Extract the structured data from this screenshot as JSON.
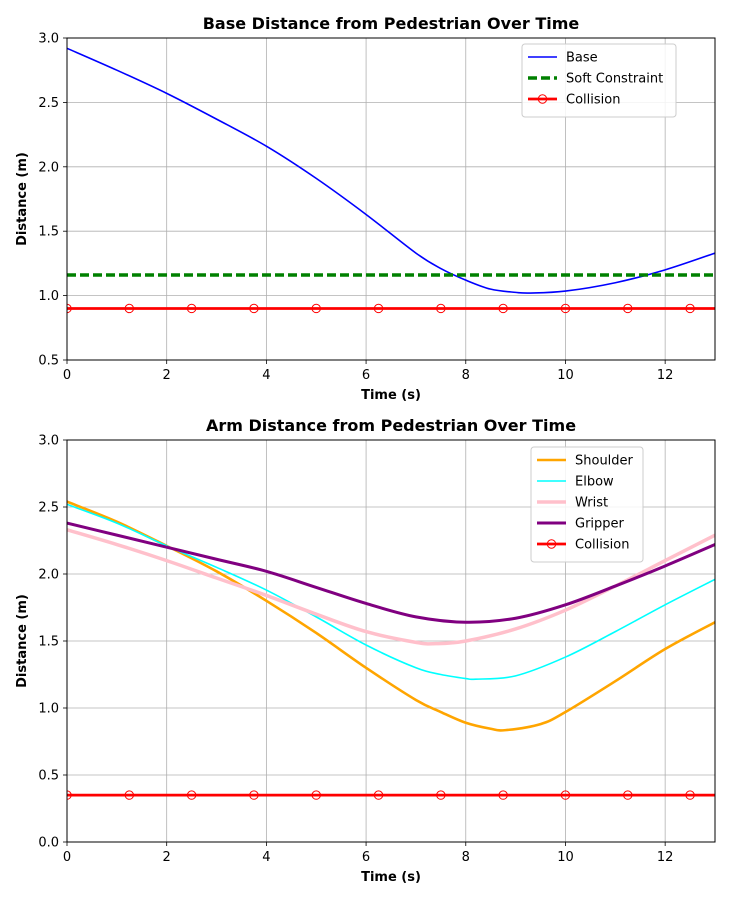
{
  "chart_data": [
    {
      "type": "line",
      "title": "Base Distance from Pedestrian Over Time",
      "xlabel": "Time (s)",
      "ylabel": "Distance (m)",
      "xlim": [
        0,
        13
      ],
      "ylim": [
        0.5,
        3.0
      ],
      "xticks": [
        0,
        2,
        4,
        6,
        8,
        10,
        12
      ],
      "yticks": [
        0.5,
        1.0,
        1.5,
        2.0,
        2.5,
        3.0
      ],
      "xtick_labels": [
        "0",
        "2",
        "4",
        "6",
        "8",
        "10",
        "12"
      ],
      "ytick_labels": [
        "0.5",
        "1.0",
        "1.5",
        "2.0",
        "2.5",
        "3.0"
      ],
      "grid": true,
      "legend_position": "upper right",
      "series": [
        {
          "name": "Base",
          "color": "#0000ff",
          "style": "solid",
          "x": [
            0,
            1,
            2,
            3,
            4,
            5,
            6,
            7,
            7.5,
            8,
            8.5,
            9,
            9.3,
            10,
            11,
            12,
            13
          ],
          "y": [
            2.92,
            2.75,
            2.57,
            2.37,
            2.16,
            1.91,
            1.63,
            1.33,
            1.21,
            1.12,
            1.05,
            1.025,
            1.02,
            1.035,
            1.1,
            1.2,
            1.33
          ]
        },
        {
          "name": "Soft Constraint",
          "color": "#008000",
          "style": "dashed",
          "x": [
            0,
            13
          ],
          "y": [
            1.16,
            1.16
          ]
        },
        {
          "name": "Collision",
          "color": "#ff0000",
          "style": "solid-markers",
          "x": [
            0,
            13
          ],
          "y": [
            0.9,
            0.9
          ],
          "marker_x": [
            0,
            1.25,
            2.5,
            3.75,
            5,
            6.25,
            7.5,
            8.75,
            10,
            11.25,
            12.5
          ]
        }
      ]
    },
    {
      "type": "line",
      "title": "Arm Distance from Pedestrian Over Time",
      "xlabel": "Time (s)",
      "ylabel": "Distance (m)",
      "xlim": [
        0,
        13
      ],
      "ylim": [
        0.0,
        3.0
      ],
      "xticks": [
        0,
        2,
        4,
        6,
        8,
        10,
        12
      ],
      "yticks": [
        0.0,
        0.5,
        1.0,
        1.5,
        2.0,
        2.5,
        3.0
      ],
      "xtick_labels": [
        "0",
        "2",
        "4",
        "6",
        "8",
        "10",
        "12"
      ],
      "ytick_labels": [
        "0.0",
        "0.5",
        "1.0",
        "1.5",
        "2.0",
        "2.5",
        "3.0"
      ],
      "grid": true,
      "legend_position": "upper right",
      "series": [
        {
          "name": "Shoulder",
          "color": "#ffa500",
          "style": "solid",
          "x": [
            0,
            1,
            2,
            3,
            4,
            5,
            6,
            7,
            7.5,
            8,
            8.5,
            8.8,
            9.5,
            10,
            11,
            12,
            13
          ],
          "y": [
            2.54,
            2.39,
            2.21,
            2.02,
            1.8,
            1.56,
            1.3,
            1.06,
            0.97,
            0.89,
            0.845,
            0.835,
            0.88,
            0.97,
            1.2,
            1.44,
            1.64
          ]
        },
        {
          "name": "Elbow",
          "color": "#00ffff",
          "style": "solid",
          "x": [
            0,
            1,
            2,
            3,
            4,
            5,
            6,
            7,
            7.5,
            8,
            8.2,
            9,
            10,
            11,
            12,
            13
          ],
          "y": [
            2.52,
            2.38,
            2.21,
            2.05,
            1.88,
            1.68,
            1.47,
            1.3,
            1.25,
            1.22,
            1.215,
            1.24,
            1.38,
            1.57,
            1.77,
            1.96
          ]
        },
        {
          "name": "Wrist",
          "color": "#ffc0cb",
          "style": "solid",
          "x": [
            0,
            1,
            2,
            3,
            4,
            5,
            6,
            7,
            7.4,
            8,
            9,
            10,
            11,
            12,
            13
          ],
          "y": [
            2.33,
            2.22,
            2.1,
            1.97,
            1.84,
            1.7,
            1.57,
            1.49,
            1.48,
            1.5,
            1.59,
            1.73,
            1.91,
            2.1,
            2.29
          ]
        },
        {
          "name": "Gripper",
          "color": "#800080",
          "style": "solid",
          "x": [
            0,
            1,
            2,
            3,
            4,
            5,
            6,
            7,
            8,
            9,
            10,
            11,
            12,
            13
          ],
          "y": [
            2.38,
            2.29,
            2.2,
            2.11,
            2.02,
            1.9,
            1.78,
            1.68,
            1.64,
            1.67,
            1.77,
            1.91,
            2.06,
            2.22
          ]
        },
        {
          "name": "Collision",
          "color": "#ff0000",
          "style": "solid-markers",
          "x": [
            0,
            13
          ],
          "y": [
            0.35,
            0.35
          ],
          "marker_x": [
            0,
            1.25,
            2.5,
            3.75,
            5,
            6.25,
            7.5,
            8.75,
            10,
            11.25,
            12.5
          ]
        }
      ]
    }
  ]
}
